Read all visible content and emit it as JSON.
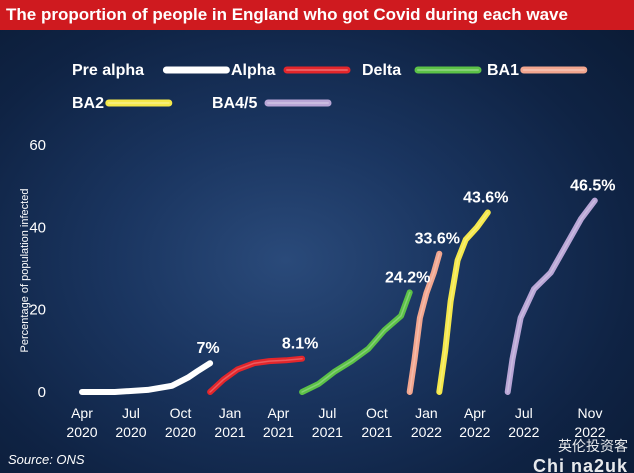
{
  "chart_data": {
    "type": "line",
    "title": "The proportion of people in England who got Covid during each wave",
    "ylabel": "Percentage of population infected",
    "ylim": [
      0,
      60
    ],
    "yticks": [
      0,
      20,
      40,
      60
    ],
    "xticks": [
      {
        "label1": "Apr",
        "label2": "2020",
        "date": "2020-04"
      },
      {
        "label1": "Jul",
        "label2": "2020",
        "date": "2020-07"
      },
      {
        "label1": "Oct",
        "label2": "2020",
        "date": "2020-10"
      },
      {
        "label1": "Jan",
        "label2": "2021",
        "date": "2021-01"
      },
      {
        "label1": "Apr",
        "label2": "2021",
        "date": "2021-04"
      },
      {
        "label1": "Jul",
        "label2": "2021",
        "date": "2021-07"
      },
      {
        "label1": "Oct",
        "label2": "2021",
        "date": "2021-10"
      },
      {
        "label1": "Jan",
        "label2": "2022",
        "date": "2022-01"
      },
      {
        "label1": "Apr",
        "label2": "2022",
        "date": "2022-04"
      },
      {
        "label1": "Jul",
        "label2": "2022",
        "date": "2022-07"
      },
      {
        "label1": "Nov",
        "label2": "2022",
        "date": "2022-11"
      }
    ],
    "grid": false,
    "legend_position": "top",
    "series": [
      {
        "name": "Pre alpha",
        "color": "#ffffff",
        "end_label": "7%",
        "points": [
          [
            "2020-04",
            0
          ],
          [
            "2020-06",
            0
          ],
          [
            "2020-08",
            0.5
          ],
          [
            "2020-09-15",
            1.5
          ],
          [
            "2020-10-15",
            3.5
          ],
          [
            "2020-11",
            5
          ],
          [
            "2020-11-25",
            7
          ]
        ]
      },
      {
        "name": "Alpha",
        "color": "#e3262b",
        "end_label": "8.1%",
        "points": [
          [
            "2020-11-25",
            0
          ],
          [
            "2020-12-20",
            3
          ],
          [
            "2021-01-15",
            5.5
          ],
          [
            "2021-02-15",
            7
          ],
          [
            "2021-03-15",
            7.5
          ],
          [
            "2021-04-15",
            7.7
          ],
          [
            "2021-05-15",
            8.1
          ]
        ]
      },
      {
        "name": "Delta",
        "color": "#5cc247",
        "end_label": "24.2%",
        "points": [
          [
            "2021-05-15",
            0
          ],
          [
            "2021-06-15",
            2
          ],
          [
            "2021-07-15",
            5
          ],
          [
            "2021-08-15",
            7.5
          ],
          [
            "2021-09-15",
            10.5
          ],
          [
            "2021-10-15",
            15
          ],
          [
            "2021-11-15",
            18.5
          ],
          [
            "2021-12-01",
            24.2
          ]
        ]
      },
      {
        "name": "BA1",
        "color": "#f2a68f",
        "end_label": "33.6%",
        "points": [
          [
            "2021-12-01",
            0
          ],
          [
            "2021-12-10",
            8
          ],
          [
            "2021-12-20",
            18
          ],
          [
            "2022-01-01",
            24
          ],
          [
            "2022-01-15",
            29
          ],
          [
            "2022-01-25",
            33.6
          ]
        ]
      },
      {
        "name": "BA2",
        "color": "#f5e84a",
        "end_label": "43.6%",
        "points": [
          [
            "2022-01-25",
            0
          ],
          [
            "2022-02-05",
            10
          ],
          [
            "2022-02-15",
            22
          ],
          [
            "2022-02-28",
            32
          ],
          [
            "2022-03-15",
            37
          ],
          [
            "2022-04-05",
            40
          ],
          [
            "2022-04-25",
            43.6
          ]
        ]
      },
      {
        "name": "BA4/5",
        "color": "#b9a6d6",
        "end_label": "46.5%",
        "points": [
          [
            "2022-06-01",
            0
          ],
          [
            "2022-06-10",
            8
          ],
          [
            "2022-06-25",
            18
          ],
          [
            "2022-07-20",
            25
          ],
          [
            "2022-08-20",
            29
          ],
          [
            "2022-09-15",
            35
          ],
          [
            "2022-10-15",
            42
          ],
          [
            "2022-11-10",
            46.5
          ]
        ]
      }
    ]
  },
  "footer": {
    "source": "Source: ONS",
    "watermark_line1": "英伦投资客",
    "watermark_line2": "Chi na2uk"
  }
}
